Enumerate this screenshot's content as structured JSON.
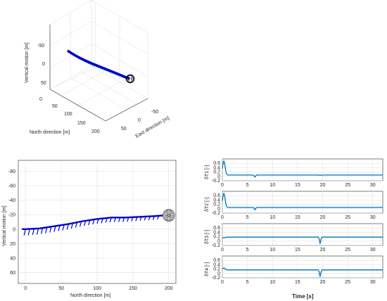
{
  "colors": {
    "series": "#0000cc",
    "cable": "#008080",
    "ts": "#0072bd",
    "axis": "#262626",
    "grid": "#dcdcdc"
  },
  "chart_data": [
    {
      "type": "line",
      "name": "3d",
      "zlabel": "Vertical motion [m]",
      "xlabel": "North direction [m]",
      "ylabel": "East direction [m]",
      "z_ticks": [
        "-50",
        "0",
        "50"
      ],
      "x_ticks": [
        "0",
        "50",
        "100",
        "150",
        "200"
      ],
      "y_ticks": [
        "-50",
        "0",
        "50"
      ]
    },
    {
      "type": "line",
      "name": "side",
      "xlabel": "North direction [m]",
      "ylabel": "Vertical motion [m]",
      "xlim": [
        -10,
        210
      ],
      "ylim": [
        -95,
        75
      ],
      "x_ticks": [
        0,
        50,
        100,
        150,
        200
      ],
      "y_ticks": [
        -80,
        -60,
        -40,
        -20,
        0,
        20,
        40,
        60
      ],
      "x": [
        -5,
        0,
        20,
        40,
        60,
        80,
        100,
        120,
        140,
        160,
        180,
        195
      ],
      "y": [
        0,
        0,
        -1,
        -4,
        -7,
        -11,
        -14,
        -16,
        -16,
        -17,
        -18,
        -19
      ]
    },
    {
      "type": "line",
      "name": "delta",
      "xlabel": "Time [s]",
      "xlim": [
        0,
        32
      ],
      "x_ticks": [
        0,
        5,
        10,
        15,
        20,
        25,
        30
      ],
      "ylim": [
        -0.2,
        0.8
      ],
      "y_ticks": [
        "-0.2",
        "0",
        "0.2",
        "0.4",
        "0.6"
      ],
      "panels": [
        {
          "ylabel": "δT1 [-]",
          "base": 0.06,
          "spikes": [
            {
              "t": 0.3,
              "v": 0.7
            },
            {
              "t": 6.5,
              "v": -0.03
            },
            {
              "t": 19.5,
              "v": 0.05
            }
          ]
        },
        {
          "ylabel": "δT2 [-]",
          "base": 0.06,
          "spikes": [
            {
              "t": 0.3,
              "v": 0.7
            },
            {
              "t": 6.5,
              "v": -0.05
            }
          ]
        },
        {
          "ylabel": "δT3 [-]",
          "base": 0.18,
          "spikes": [
            {
              "t": 0.3,
              "v": 0.15
            },
            {
              "t": 19.5,
              "v": -0.1
            }
          ]
        },
        {
          "ylabel": "δT4 [-]",
          "base": 0.16,
          "spikes": [
            {
              "t": 0.3,
              "v": 0.25
            },
            {
              "t": 19.5,
              "v": -0.12
            }
          ]
        }
      ]
    }
  ]
}
